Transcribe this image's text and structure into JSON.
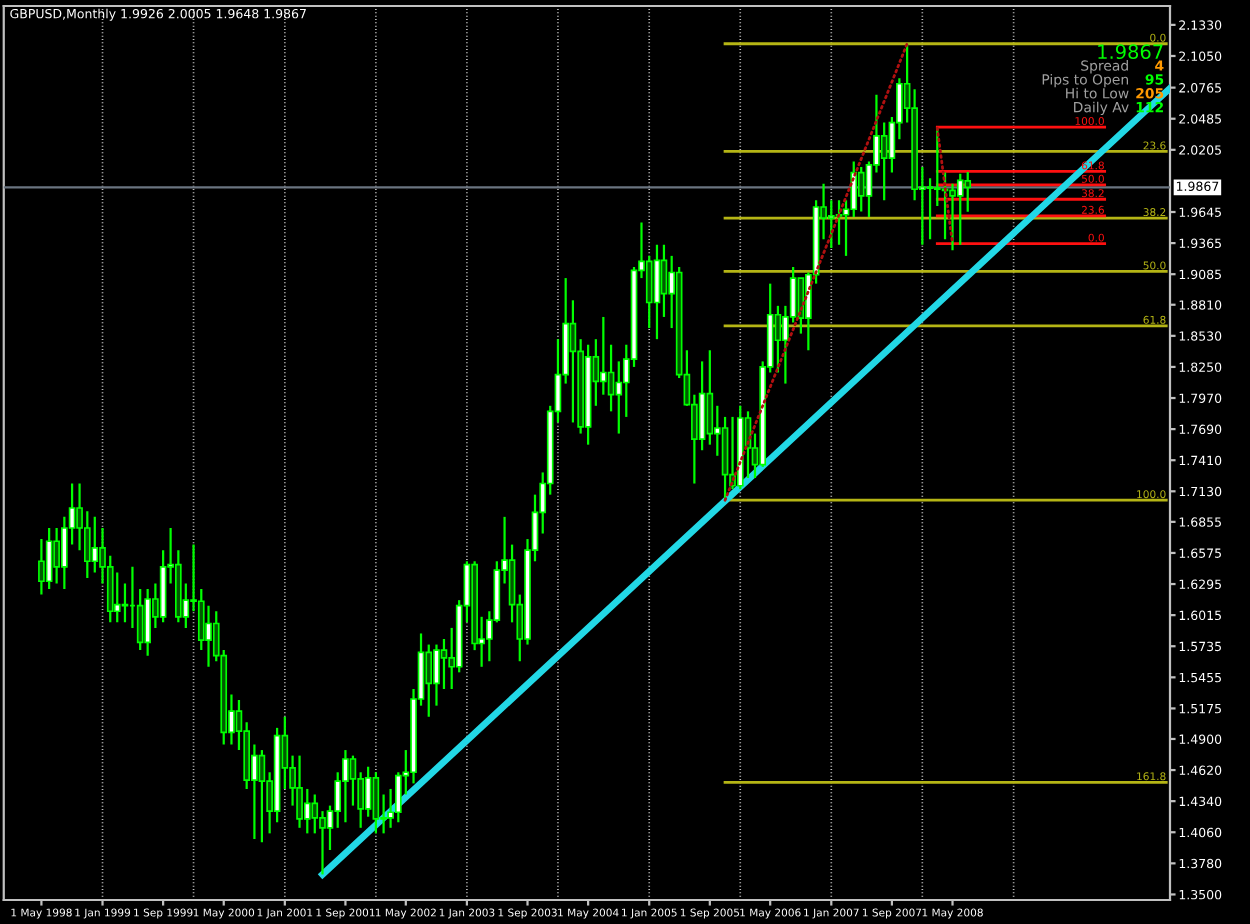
{
  "chart_data": {
    "type": "candlestick",
    "title": "GBPUSD,Monthly 1.9926 2.0005 1.9648 1.9867",
    "color": "#00ff00",
    "x": [
      "1998-05",
      "1998-06",
      "1998-07",
      "1998-08",
      "1998-09",
      "1998-10",
      "1998-11",
      "1998-12",
      "1999-01",
      "1999-02",
      "1999-03",
      "1999-04",
      "1999-05",
      "1999-06",
      "1999-07",
      "1999-08",
      "1999-09",
      "1999-10",
      "1999-11",
      "1999-12",
      "2000-01",
      "2000-02",
      "2000-03",
      "2000-04",
      "2000-05",
      "2000-06",
      "2000-07",
      "2000-08",
      "2000-09",
      "2000-10",
      "2000-11",
      "2000-12",
      "2001-01",
      "2001-02",
      "2001-03",
      "2001-04",
      "2001-05",
      "2001-06",
      "2001-07",
      "2001-08",
      "2001-09",
      "2001-10",
      "2001-11",
      "2001-12",
      "2002-01",
      "2002-02",
      "2002-03",
      "2002-04",
      "2002-05",
      "2002-06",
      "2002-07",
      "2002-08",
      "2002-09",
      "2002-10",
      "2002-11",
      "2002-12",
      "2003-01",
      "2003-02",
      "2003-03",
      "2003-04",
      "2003-05",
      "2003-06",
      "2003-07",
      "2003-08",
      "2003-09",
      "2003-10",
      "2003-11",
      "2003-12",
      "2004-01",
      "2004-02",
      "2004-03",
      "2004-04",
      "2004-05",
      "2004-06",
      "2004-07",
      "2004-08",
      "2004-09",
      "2004-10",
      "2004-11",
      "2004-12",
      "2005-01",
      "2005-02",
      "2005-03",
      "2005-04",
      "2005-05",
      "2005-06",
      "2005-07",
      "2005-08",
      "2005-09",
      "2005-10",
      "2005-11",
      "2005-12",
      "2006-01",
      "2006-02",
      "2006-03",
      "2006-04",
      "2006-05",
      "2006-06",
      "2006-07",
      "2006-08",
      "2006-09",
      "2006-10",
      "2006-11",
      "2006-12",
      "2007-01",
      "2007-02",
      "2007-03",
      "2007-04",
      "2007-05",
      "2007-06",
      "2007-07",
      "2007-08",
      "2007-09",
      "2007-10",
      "2007-11",
      "2007-12",
      "2008-01",
      "2008-02",
      "2008-03",
      "2008-04",
      "2008-05",
      "2008-06",
      "2008-07"
    ],
    "ohlc": [
      [
        1.65,
        1.67,
        1.62,
        1.632
      ],
      [
        1.632,
        1.68,
        1.625,
        1.668
      ],
      [
        1.668,
        1.68,
        1.63,
        1.645
      ],
      [
        1.645,
        1.69,
        1.625,
        1.68
      ],
      [
        1.68,
        1.72,
        1.665,
        1.698
      ],
      [
        1.698,
        1.72,
        1.66,
        1.68
      ],
      [
        1.68,
        1.695,
        1.635,
        1.65
      ],
      [
        1.65,
        1.69,
        1.64,
        1.662
      ],
      [
        1.662,
        1.68,
        1.63,
        1.645
      ],
      [
        1.645,
        1.655,
        1.595,
        1.605
      ],
      [
        1.605,
        1.64,
        1.595,
        1.611
      ],
      [
        1.611,
        1.63,
        1.595,
        1.61
      ],
      [
        1.61,
        1.645,
        1.59,
        1.61
      ],
      [
        1.61,
        1.625,
        1.57,
        1.577
      ],
      [
        1.577,
        1.625,
        1.565,
        1.616
      ],
      [
        1.616,
        1.63,
        1.59,
        1.6
      ],
      [
        1.6,
        1.66,
        1.595,
        1.645
      ],
      [
        1.645,
        1.68,
        1.63,
        1.647
      ],
      [
        1.647,
        1.66,
        1.595,
        1.6
      ],
      [
        1.6,
        1.63,
        1.59,
        1.615
      ],
      [
        1.615,
        1.665,
        1.605,
        1.614
      ],
      [
        1.614,
        1.625,
        1.57,
        1.579
      ],
      [
        1.579,
        1.61,
        1.555,
        1.594
      ],
      [
        1.594,
        1.605,
        1.56,
        1.565
      ],
      [
        1.565,
        1.57,
        1.485,
        1.496
      ],
      [
        1.496,
        1.53,
        1.485,
        1.515
      ],
      [
        1.515,
        1.525,
        1.48,
        1.497
      ],
      [
        1.497,
        1.505,
        1.445,
        1.453
      ],
      [
        1.453,
        1.485,
        1.4,
        1.475
      ],
      [
        1.475,
        1.48,
        1.397,
        1.452
      ],
      [
        1.452,
        1.46,
        1.405,
        1.425
      ],
      [
        1.425,
        1.5,
        1.415,
        1.493
      ],
      [
        1.493,
        1.51,
        1.445,
        1.464
      ],
      [
        1.464,
        1.475,
        1.43,
        1.446
      ],
      [
        1.446,
        1.475,
        1.41,
        1.418
      ],
      [
        1.418,
        1.445,
        1.405,
        1.432
      ],
      [
        1.432,
        1.44,
        1.405,
        1.419
      ],
      [
        1.419,
        1.425,
        1.368,
        1.41
      ],
      [
        1.41,
        1.43,
        1.39,
        1.425
      ],
      [
        1.425,
        1.46,
        1.41,
        1.452
      ],
      [
        1.452,
        1.48,
        1.415,
        1.472
      ],
      [
        1.472,
        1.475,
        1.43,
        1.454
      ],
      [
        1.454,
        1.46,
        1.41,
        1.427
      ],
      [
        1.427,
        1.465,
        1.42,
        1.455
      ],
      [
        1.455,
        1.46,
        1.405,
        1.418
      ],
      [
        1.418,
        1.44,
        1.405,
        1.419
      ],
      [
        1.419,
        1.445,
        1.41,
        1.424
      ],
      [
        1.424,
        1.46,
        1.415,
        1.457
      ],
      [
        1.457,
        1.48,
        1.44,
        1.46
      ],
      [
        1.46,
        1.535,
        1.45,
        1.526
      ],
      [
        1.526,
        1.585,
        1.52,
        1.568
      ],
      [
        1.568,
        1.575,
        1.51,
        1.54
      ],
      [
        1.54,
        1.575,
        1.52,
        1.57
      ],
      [
        1.57,
        1.58,
        1.535,
        1.563
      ],
      [
        1.563,
        1.59,
        1.535,
        1.555
      ],
      [
        1.555,
        1.615,
        1.55,
        1.61
      ],
      [
        1.61,
        1.65,
        1.595,
        1.647
      ],
      [
        1.647,
        1.65,
        1.57,
        1.576
      ],
      [
        1.576,
        1.6,
        1.555,
        1.58
      ],
      [
        1.58,
        1.605,
        1.56,
        1.597
      ],
      [
        1.597,
        1.65,
        1.595,
        1.642
      ],
      [
        1.642,
        1.69,
        1.63,
        1.651
      ],
      [
        1.651,
        1.665,
        1.595,
        1.611
      ],
      [
        1.611,
        1.62,
        1.56,
        1.58
      ],
      [
        1.58,
        1.67,
        1.575,
        1.66
      ],
      [
        1.66,
        1.71,
        1.65,
        1.694
      ],
      [
        1.694,
        1.73,
        1.675,
        1.72
      ],
      [
        1.72,
        1.79,
        1.71,
        1.785
      ],
      [
        1.785,
        1.85,
        1.775,
        1.818
      ],
      [
        1.818,
        1.905,
        1.81,
        1.864
      ],
      [
        1.864,
        1.885,
        1.775,
        1.839
      ],
      [
        1.839,
        1.85,
        1.765,
        1.771
      ],
      [
        1.771,
        1.845,
        1.755,
        1.834
      ],
      [
        1.834,
        1.85,
        1.79,
        1.812
      ],
      [
        1.812,
        1.87,
        1.8,
        1.82
      ],
      [
        1.82,
        1.845,
        1.785,
        1.8
      ],
      [
        1.8,
        1.83,
        1.765,
        1.811
      ],
      [
        1.811,
        1.845,
        1.78,
        1.832
      ],
      [
        1.832,
        1.915,
        1.825,
        1.912
      ],
      [
        1.912,
        1.955,
        1.905,
        1.92
      ],
      [
        1.92,
        1.925,
        1.86,
        1.883
      ],
      [
        1.883,
        1.935,
        1.85,
        1.921
      ],
      [
        1.921,
        1.935,
        1.87,
        1.891
      ],
      [
        1.891,
        1.925,
        1.86,
        1.91
      ],
      [
        1.91,
        1.915,
        1.815,
        1.818
      ],
      [
        1.818,
        1.84,
        1.79,
        1.791
      ],
      [
        1.791,
        1.8,
        1.72,
        1.76
      ],
      [
        1.76,
        1.83,
        1.75,
        1.801
      ],
      [
        1.801,
        1.84,
        1.755,
        1.765
      ],
      [
        1.765,
        1.79,
        1.745,
        1.77
      ],
      [
        1.77,
        1.78,
        1.705,
        1.728
      ],
      [
        1.728,
        1.78,
        1.715,
        1.718
      ],
      [
        1.718,
        1.79,
        1.715,
        1.779
      ],
      [
        1.779,
        1.785,
        1.725,
        1.752
      ],
      [
        1.752,
        1.765,
        1.725,
        1.737
      ],
      [
        1.737,
        1.83,
        1.735,
        1.825
      ],
      [
        1.825,
        1.9,
        1.82,
        1.872
      ],
      [
        1.872,
        1.88,
        1.82,
        1.849
      ],
      [
        1.849,
        1.88,
        1.81,
        1.87
      ],
      [
        1.87,
        1.915,
        1.865,
        1.905
      ],
      [
        1.905,
        1.905,
        1.855,
        1.869
      ],
      [
        1.869,
        1.91,
        1.84,
        1.908
      ],
      [
        1.908,
        1.975,
        1.9,
        1.969
      ],
      [
        1.969,
        1.99,
        1.94,
        1.959
      ],
      [
        1.959,
        1.975,
        1.932,
        1.961
      ],
      [
        1.961,
        1.975,
        1.935,
        1.962
      ],
      [
        1.962,
        1.975,
        1.925,
        1.967
      ],
      [
        1.967,
        2.01,
        1.96,
        2.0
      ],
      [
        2.0,
        2.005,
        1.965,
        1.979
      ],
      [
        1.979,
        2.01,
        1.96,
        2.007
      ],
      [
        2.007,
        2.07,
        2.0,
        2.033
      ],
      [
        2.033,
        2.045,
        1.975,
        2.013
      ],
      [
        2.013,
        2.05,
        2.0,
        2.045
      ],
      [
        2.045,
        2.085,
        2.03,
        2.08
      ],
      [
        2.08,
        2.116,
        2.045,
        2.058
      ],
      [
        2.058,
        2.075,
        1.975,
        1.985
      ],
      [
        1.985,
        2.005,
        1.935,
        1.987
      ],
      [
        1.987,
        1.995,
        1.94,
        1.986
      ],
      [
        1.986,
        2.04,
        1.97,
        1.985
      ],
      [
        1.985,
        2.0,
        1.94,
        1.984
      ],
      [
        1.984,
        1.99,
        1.93,
        1.979
      ],
      [
        1.979,
        1.999,
        1.935,
        1.993
      ],
      [
        1.9926,
        2.0005,
        1.9648,
        1.9867
      ]
    ],
    "series": [
      {
        "type": "line",
        "color": "#22d8e6",
        "x": [
          "2001-06",
          "2010-09-20"
        ],
        "values": [
          1.368,
          2.076
        ]
      },
      {
        "type": "line",
        "line_style": "dotted",
        "color": "#b01010",
        "x": [
          "2005-11",
          "2007-11"
        ],
        "values": [
          1.705,
          2.116
        ]
      },
      {
        "type": "line",
        "line_style": "dotted",
        "color": "#b01010",
        "x": [
          "2008-03",
          "2008-05"
        ],
        "values": [
          2.04,
          1.936
        ]
      },
      {
        "type": "line",
        "name": "0.0",
        "color": "#b5b515",
        "x": [
          "2005-11",
          "2010-09-05"
        ],
        "values": [
          2.116,
          2.116
        ]
      },
      {
        "type": "line",
        "name": "23.6",
        "color": "#b5b515",
        "x": [
          "2005-11",
          "2010-09-05"
        ],
        "values": [
          2.019,
          2.019
        ]
      },
      {
        "type": "line",
        "name": "38.2",
        "color": "#b5b515",
        "x": [
          "2005-11",
          "2010-09-05"
        ],
        "values": [
          1.959,
          1.959
        ]
      },
      {
        "type": "line",
        "name": "50.0",
        "color": "#b5b515",
        "x": [
          "2005-11",
          "2010-09-05"
        ],
        "values": [
          1.911,
          1.911
        ]
      },
      {
        "type": "line",
        "name": "61.8",
        "color": "#b5b515",
        "x": [
          "2005-11",
          "2010-09-05"
        ],
        "values": [
          1.862,
          1.862
        ]
      },
      {
        "type": "line",
        "name": "100.0",
        "color": "#b5b515",
        "x": [
          "2005-11",
          "2010-09-05"
        ],
        "values": [
          1.705,
          1.705
        ]
      },
      {
        "type": "line",
        "name": "161.8",
        "color": "#b5b515",
        "x": [
          "2005-11",
          "2010-09-05"
        ],
        "values": [
          1.451,
          1.451
        ]
      },
      {
        "type": "line",
        "name": "100.0",
        "color": "#ff1010",
        "x": [
          "2008-03",
          "2010-01"
        ],
        "values": [
          2.041,
          2.041
        ]
      },
      {
        "type": "line",
        "name": "61.8",
        "color": "#ff1010",
        "x": [
          "2008-03",
          "2010-01"
        ],
        "values": [
          2.001,
          2.001
        ]
      },
      {
        "type": "line",
        "name": "50.0",
        "color": "#ff1010",
        "x": [
          "2008-03",
          "2010-01"
        ],
        "values": [
          1.989,
          1.989
        ]
      },
      {
        "type": "line",
        "name": "38.2",
        "color": "#ff1010",
        "x": [
          "2008-03",
          "2010-01"
        ],
        "values": [
          1.976,
          1.976
        ]
      },
      {
        "type": "line",
        "name": "23.6",
        "color": "#ff1010",
        "x": [
          "2008-03",
          "2010-01"
        ],
        "values": [
          1.961,
          1.961
        ]
      },
      {
        "type": "line",
        "name": "0.0",
        "color": "#ff1010",
        "x": [
          "2008-03",
          "2010-01"
        ],
        "values": [
          1.936,
          1.936
        ]
      }
    ],
    "ref_lines": [
      {
        "axis": "y",
        "value": 1.9867,
        "label": "1.9867",
        "color": "#6a7480"
      },
      {
        "axis": "x",
        "value": "1999-01",
        "color": "#c0c0c0",
        "line_style": "dotted"
      },
      {
        "axis": "x",
        "value": "2000-01",
        "color": "#c0c0c0",
        "line_style": "dotted"
      },
      {
        "axis": "x",
        "value": "2001-01",
        "color": "#c0c0c0",
        "line_style": "dotted"
      },
      {
        "axis": "x",
        "value": "2002-01",
        "color": "#c0c0c0",
        "line_style": "dotted"
      },
      {
        "axis": "x",
        "value": "2003-01",
        "color": "#c0c0c0",
        "line_style": "dotted"
      },
      {
        "axis": "x",
        "value": "2004-01",
        "color": "#c0c0c0",
        "line_style": "dotted"
      },
      {
        "axis": "x",
        "value": "2005-01",
        "color": "#c0c0c0",
        "line_style": "dotted"
      },
      {
        "axis": "x",
        "value": "2006-01",
        "color": "#c0c0c0",
        "line_style": "dotted"
      },
      {
        "axis": "x",
        "value": "2007-01",
        "color": "#c0c0c0",
        "line_style": "dotted"
      },
      {
        "axis": "x",
        "value": "2008-01",
        "color": "#c0c0c0",
        "line_style": "dotted"
      },
      {
        "axis": "x",
        "value": "2009-01",
        "color": "#c0c0c0",
        "line_style": "dotted"
      }
    ],
    "annotations": [
      "1.9867",
      "Spread",
      "4",
      "Pips to Open",
      "95",
      "Hi to Low",
      "205",
      "Daily Av",
      "112"
    ],
    "xlim": [
      "1997-12-01",
      "2010-09-20"
    ],
    "xticks": [
      {
        "value": "1998-05",
        "label": "1 May 1998"
      },
      {
        "value": "1999-01",
        "label": "1 Jan 1999"
      },
      {
        "value": "1999-09",
        "label": "1 Sep 1999"
      },
      {
        "value": "2000-05",
        "label": "1 May 2000"
      },
      {
        "value": "2001-01",
        "label": "1 Jan 2001"
      },
      {
        "value": "2001-09",
        "label": "1 Sep 2001"
      },
      {
        "value": "2002-05",
        "label": "1 May 2002"
      },
      {
        "value": "2003-01",
        "label": "1 Jan 2003"
      },
      {
        "value": "2003-09",
        "label": "1 Sep 2003"
      },
      {
        "value": "2004-05",
        "label": "1 May 2004"
      },
      {
        "value": "2005-01",
        "label": "1 Jan 2005"
      },
      {
        "value": "2005-09",
        "label": "1 Sep 2005"
      },
      {
        "value": "2006-05",
        "label": "1 May 2006"
      },
      {
        "value": "2007-01",
        "label": "1 Jan 2007"
      },
      {
        "value": "2007-09",
        "label": "1 Sep 2007"
      },
      {
        "value": "2008-05",
        "label": "1 May 2008"
      }
    ],
    "ylim": [
      1.345,
      2.15
    ],
    "yticks": [
      {
        "value": 2.133,
        "label": "2.1330"
      },
      {
        "value": 2.105,
        "label": "2.1050"
      },
      {
        "value": 2.0765,
        "label": "2.0765"
      },
      {
        "value": 2.0485,
        "label": "2.0485"
      },
      {
        "value": 2.0205,
        "label": "2.0205"
      },
      {
        "value": 1.9645,
        "label": "1.9645"
      },
      {
        "value": 1.9365,
        "label": "1.9365"
      },
      {
        "value": 1.9085,
        "label": "1.9085"
      },
      {
        "value": 1.881,
        "label": "1.8810"
      },
      {
        "value": 1.853,
        "label": "1.8530"
      },
      {
        "value": 1.825,
        "label": "1.8250"
      },
      {
        "value": 1.797,
        "label": "1.7970"
      },
      {
        "value": 1.769,
        "label": "1.7690"
      },
      {
        "value": 1.741,
        "label": "1.7410"
      },
      {
        "value": 1.713,
        "label": "1.7130"
      },
      {
        "value": 1.6855,
        "label": "1.6855"
      },
      {
        "value": 1.6575,
        "label": "1.6575"
      },
      {
        "value": 1.6295,
        "label": "1.6295"
      },
      {
        "value": 1.6015,
        "label": "1.6015"
      },
      {
        "value": 1.5735,
        "label": "1.5735"
      },
      {
        "value": 1.5455,
        "label": "1.5455"
      },
      {
        "value": 1.5175,
        "label": "1.5175"
      },
      {
        "value": 1.49,
        "label": "1.4900"
      },
      {
        "value": 1.462,
        "label": "1.4620"
      },
      {
        "value": 1.434,
        "label": "1.4340"
      },
      {
        "value": 1.406,
        "label": "1.4060"
      },
      {
        "value": 1.378,
        "label": "1.3780"
      },
      {
        "value": 1.35,
        "label": "1.3500"
      }
    ]
  }
}
